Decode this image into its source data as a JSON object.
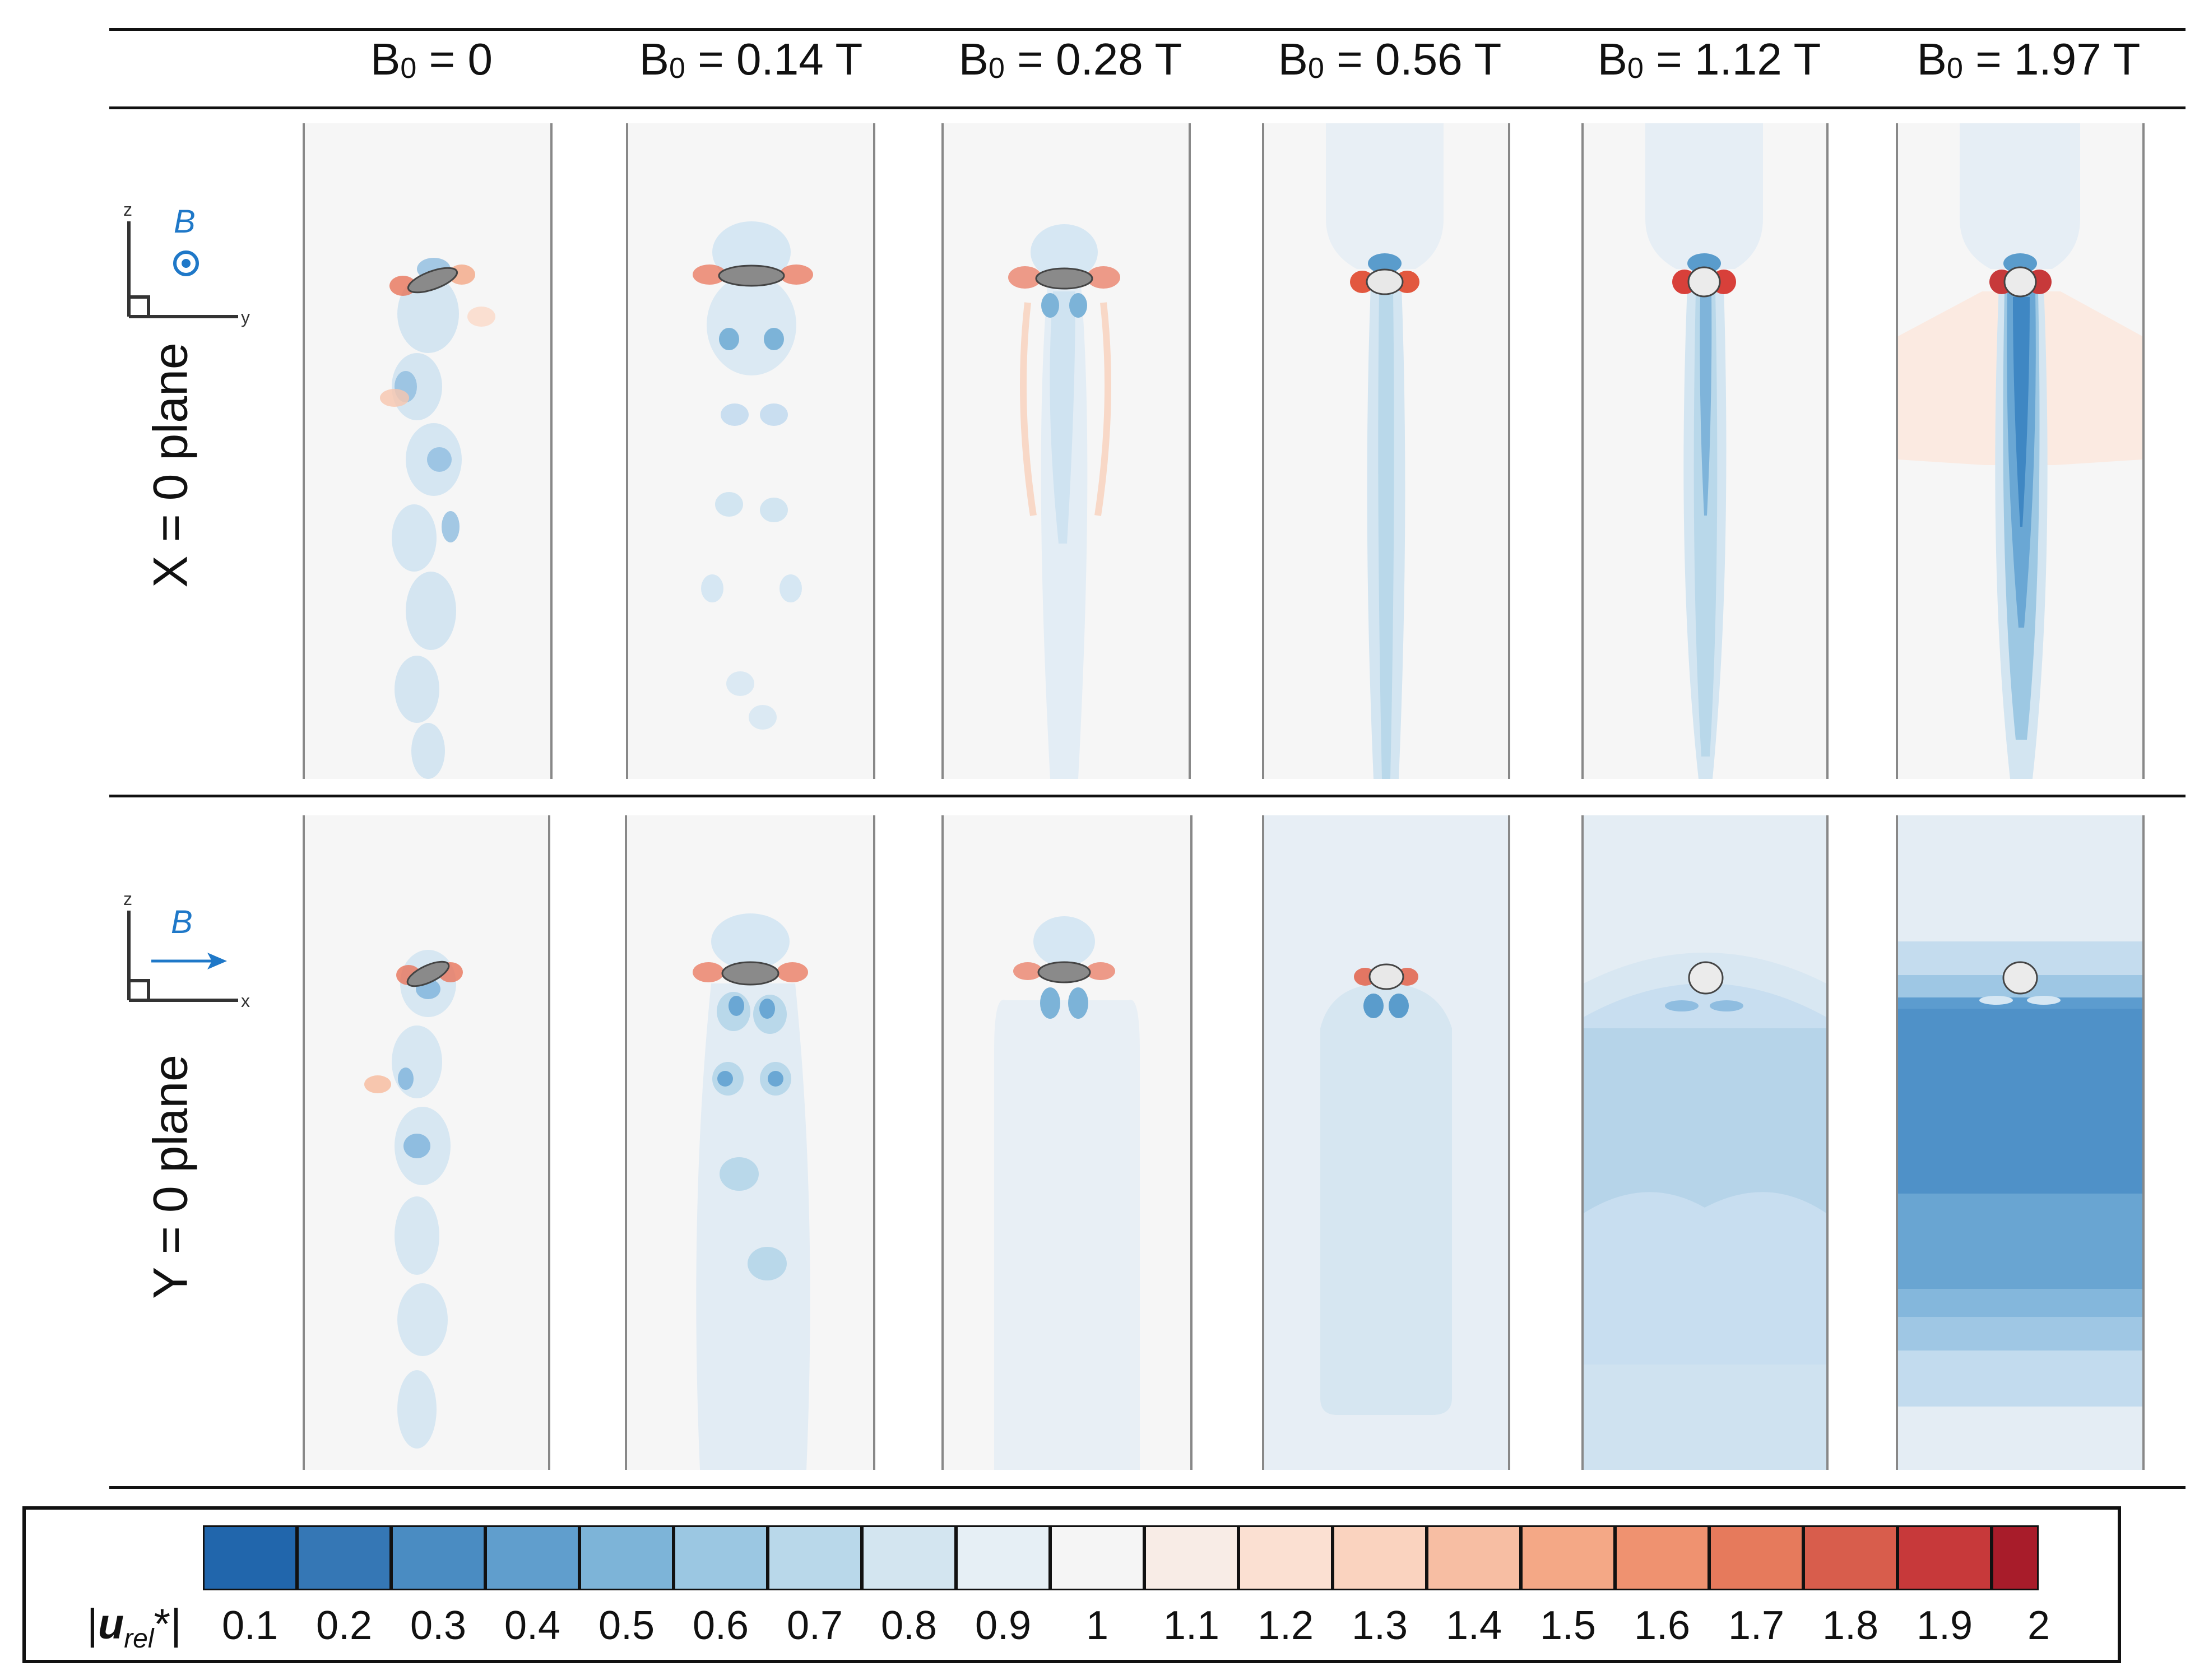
{
  "columns": [
    {
      "base": "B",
      "sub": "0",
      "rest": " = 0"
    },
    {
      "base": "B",
      "sub": "0",
      "rest": " = 0.14 T"
    },
    {
      "base": "B",
      "sub": "0",
      "rest": " = 0.28 T"
    },
    {
      "base": "B",
      "sub": "0",
      "rest": " = 0.56 T"
    },
    {
      "base": "B",
      "sub": "0",
      "rest": " = 1.12 T"
    },
    {
      "base": "B",
      "sub": "0",
      "rest": " = 1.97 T"
    }
  ],
  "rows": [
    {
      "label": "X = 0 plane",
      "axis_vertical": "z",
      "axis_horizontal": "y",
      "field_label": "B",
      "field_symbol": "out-of-plane-dot"
    },
    {
      "label": "Y = 0 plane",
      "axis_vertical": "z",
      "axis_horizontal": "x",
      "field_label": "B",
      "field_symbol": "arrow-right"
    }
  ],
  "colorbar": {
    "label_prefix": "|",
    "label_var": "u",
    "label_sub": "rel",
    "label_suffix": "*|",
    "ticks": [
      "0.1",
      "0.2",
      "0.3",
      "0.4",
      "0.5",
      "0.6",
      "0.7",
      "0.8",
      "0.9",
      "1",
      "1.1",
      "1.2",
      "1.3",
      "1.4",
      "1.5",
      "1.6",
      "1.7",
      "1.8",
      "1.9",
      "2"
    ],
    "colors": [
      "#2166ac",
      "#3577b5",
      "#4a8cc2",
      "#609ecd",
      "#7db4d8",
      "#9bc7e2",
      "#b9d8ea",
      "#d3e5f0",
      "#e6eff5",
      "#f5f5f5",
      "#f8ece6",
      "#fbe0d2",
      "#fad3bf",
      "#f7bea3",
      "#f4a886",
      "#ef9270",
      "#e67a5c",
      "#d85d4c",
      "#c7393a",
      "#a81c2a"
    ]
  },
  "colors": {
    "field_blue": "#1f78c8",
    "panel_bg": "#f6f6f6"
  }
}
